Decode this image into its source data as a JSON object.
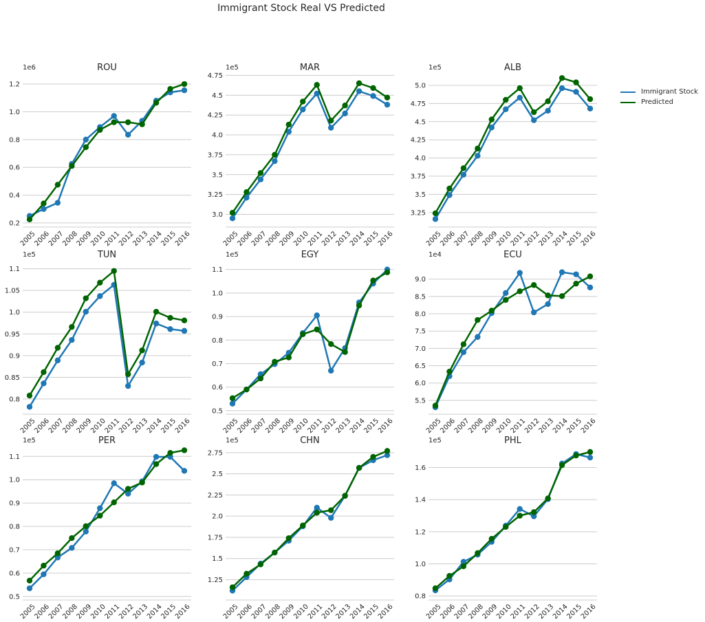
{
  "title": "Immigrant Stock Real VS Predicted",
  "legend": {
    "placement": "right",
    "entries": [
      {
        "label": "Immigrant Stock",
        "color": "#1f77b4"
      },
      {
        "label": "Predicted",
        "color": "#006400"
      }
    ]
  },
  "chart_data": [
    {
      "type": "line",
      "title": "ROU",
      "offset_label": "1e6",
      "categories": [
        "2005",
        "2006",
        "2007",
        "2008",
        "2009",
        "2010",
        "2011",
        "2012",
        "2013",
        "2014",
        "2015",
        "2016"
      ],
      "yticks": [
        0.2,
        0.4,
        0.6,
        0.8,
        1.0,
        1.2
      ],
      "ylim": [
        0.17,
        1.28
      ],
      "grid": "y",
      "series": [
        {
          "name": "Immigrant Stock",
          "values": [
            0.25,
            0.3,
            0.345,
            0.625,
            0.8,
            0.89,
            0.97,
            0.835,
            0.935,
            1.08,
            1.14,
            1.155
          ]
        },
        {
          "name": "Predicted",
          "values": [
            0.225,
            0.34,
            0.475,
            0.61,
            0.745,
            0.87,
            0.925,
            0.925,
            0.91,
            1.065,
            1.165,
            1.2
          ]
        }
      ]
    },
    {
      "type": "line",
      "title": "MAR",
      "offset_label": "1e5",
      "categories": [
        "2005",
        "2006",
        "2007",
        "2008",
        "2009",
        "2010",
        "2011",
        "2012",
        "2013",
        "2014",
        "2015",
        "2016"
      ],
      "yticks": [
        3.0,
        3.25,
        3.5,
        3.75,
        4.0,
        4.25,
        4.5,
        4.75
      ],
      "ylim": [
        2.84,
        4.78
      ],
      "grid": "y",
      "series": [
        {
          "name": "Immigrant Stock",
          "values": [
            2.95,
            3.21,
            3.44,
            3.67,
            4.04,
            4.32,
            4.52,
            4.09,
            4.27,
            4.55,
            4.49,
            4.38
          ]
        },
        {
          "name": "Predicted",
          "values": [
            3.02,
            3.28,
            3.52,
            3.75,
            4.13,
            4.42,
            4.63,
            4.18,
            4.37,
            4.65,
            4.59,
            4.47
          ]
        }
      ]
    },
    {
      "type": "line",
      "title": "ALB",
      "offset_label": "1e5",
      "categories": [
        "2005",
        "2006",
        "2007",
        "2008",
        "2009",
        "2010",
        "2011",
        "2012",
        "2013",
        "2014",
        "2015",
        "2016"
      ],
      "yticks": [
        3.25,
        3.5,
        3.75,
        4.0,
        4.25,
        4.5,
        4.75,
        5.0
      ],
      "ylim": [
        3.05,
        5.17
      ],
      "grid": "y",
      "series": [
        {
          "name": "Immigrant Stock",
          "values": [
            3.16,
            3.49,
            3.77,
            4.03,
            4.42,
            4.67,
            4.83,
            4.52,
            4.65,
            4.96,
            4.91,
            4.68
          ]
        },
        {
          "name": "Predicted",
          "values": [
            3.24,
            3.58,
            3.86,
            4.13,
            4.53,
            4.8,
            4.96,
            4.63,
            4.78,
            5.1,
            5.04,
            4.81
          ]
        }
      ]
    },
    {
      "type": "line",
      "title": "TUN",
      "offset_label": "1e5",
      "categories": [
        "2005",
        "2006",
        "2007",
        "2008",
        "2009",
        "2010",
        "2011",
        "2012",
        "2013",
        "2014",
        "2015",
        "2016"
      ],
      "yticks": [
        0.8,
        0.85,
        0.9,
        0.95,
        1.0,
        1.05,
        1.1
      ],
      "ylim": [
        0.765,
        1.12
      ],
      "grid": "y",
      "series": [
        {
          "name": "Immigrant Stock",
          "values": [
            0.782,
            0.836,
            0.889,
            0.936,
            1.001,
            1.037,
            1.063,
            0.83,
            0.884,
            0.974,
            0.961,
            0.957
          ]
        },
        {
          "name": "Predicted",
          "values": [
            0.808,
            0.862,
            0.918,
            0.966,
            1.032,
            1.068,
            1.095,
            0.857,
            0.912,
            1.001,
            0.987,
            0.981
          ]
        }
      ]
    },
    {
      "type": "line",
      "title": "EGY",
      "offset_label": "1e5",
      "categories": [
        "2005",
        "2006",
        "2007",
        "2008",
        "2009",
        "2010",
        "2011",
        "2012",
        "2013",
        "2014",
        "2015",
        "2016"
      ],
      "yticks": [
        0.5,
        0.6,
        0.7,
        0.8,
        0.9,
        1.0,
        1.1
      ],
      "ylim": [
        0.485,
        1.14
      ],
      "grid": "y",
      "series": [
        {
          "name": "Immigrant Stock",
          "values": [
            0.53,
            0.59,
            0.655,
            0.698,
            0.746,
            0.83,
            0.905,
            0.67,
            0.766,
            0.96,
            1.04,
            1.1
          ]
        },
        {
          "name": "Predicted",
          "values": [
            0.553,
            0.59,
            0.637,
            0.708,
            0.726,
            0.825,
            0.845,
            0.783,
            0.749,
            0.947,
            1.053,
            1.088
          ]
        }
      ]
    },
    {
      "type": "line",
      "title": "ECU",
      "offset_label": "1e4",
      "categories": [
        "2005",
        "2006",
        "2007",
        "2008",
        "2009",
        "2010",
        "2011",
        "2012",
        "2013",
        "2014",
        "2015",
        "2016"
      ],
      "yticks": [
        5.5,
        6.0,
        6.5,
        7.0,
        7.5,
        8.0,
        8.5,
        9.0
      ],
      "ylim": [
        5.1,
        9.55
      ],
      "grid": "y",
      "series": [
        {
          "name": "Immigrant Stock",
          "values": [
            5.3,
            6.2,
            6.89,
            7.33,
            8.02,
            8.6,
            9.18,
            8.04,
            8.28,
            9.2,
            9.14,
            8.76
          ]
        },
        {
          "name": "Predicted",
          "values": [
            5.35,
            6.33,
            7.12,
            7.82,
            8.09,
            8.4,
            8.65,
            8.83,
            8.53,
            8.51,
            8.87,
            9.08
          ]
        }
      ]
    },
    {
      "type": "line",
      "title": "PER",
      "offset_label": "1e5",
      "categories": [
        "2005",
        "2006",
        "2007",
        "2008",
        "2009",
        "2010",
        "2011",
        "2012",
        "2013",
        "2014",
        "2015",
        "2016"
      ],
      "yticks": [
        0.5,
        0.6,
        0.7,
        0.8,
        0.9,
        1.0,
        1.1
      ],
      "ylim": [
        0.485,
        1.145
      ],
      "grid": "y",
      "series": [
        {
          "name": "Immigrant Stock",
          "values": [
            0.535,
            0.595,
            0.667,
            0.708,
            0.778,
            0.878,
            0.985,
            0.94,
            0.993,
            1.098,
            1.098,
            1.038
          ]
        },
        {
          "name": "Predicted",
          "values": [
            0.568,
            0.632,
            0.685,
            0.75,
            0.801,
            0.846,
            0.903,
            0.961,
            0.988,
            1.067,
            1.115,
            1.126
          ]
        }
      ]
    },
    {
      "type": "line",
      "title": "CHN",
      "offset_label": "1e5",
      "categories": [
        "2005",
        "2006",
        "2007",
        "2008",
        "2009",
        "2010",
        "2011",
        "2012",
        "2013",
        "2014",
        "2015",
        "2016"
      ],
      "yticks": [
        1.25,
        1.5,
        1.75,
        2.0,
        2.25,
        2.5,
        2.75
      ],
      "ylim": [
        1.01,
        2.83
      ],
      "grid": "y",
      "series": [
        {
          "name": "Immigrant Stock",
          "values": [
            1.12,
            1.28,
            1.44,
            1.57,
            1.71,
            1.88,
            2.1,
            1.98,
            2.24,
            2.57,
            2.66,
            2.72
          ]
        },
        {
          "name": "Predicted",
          "values": [
            1.16,
            1.32,
            1.43,
            1.57,
            1.74,
            1.89,
            2.04,
            2.07,
            2.24,
            2.57,
            2.7,
            2.77
          ]
        }
      ]
    },
    {
      "type": "line",
      "title": "PHL",
      "offset_label": "1e5",
      "categories": [
        "2005",
        "2006",
        "2007",
        "2008",
        "2009",
        "2010",
        "2011",
        "2012",
        "2013",
        "2014",
        "2015",
        "2016"
      ],
      "yticks": [
        0.8,
        1.0,
        1.2,
        1.4,
        1.6
      ],
      "ylim": [
        0.775,
        1.735
      ],
      "grid": "y",
      "series": [
        {
          "name": "Immigrant Stock",
          "values": [
            0.835,
            0.903,
            1.013,
            1.057,
            1.137,
            1.238,
            1.342,
            1.296,
            1.403,
            1.625,
            1.684,
            1.662
          ]
        },
        {
          "name": "Predicted",
          "values": [
            0.848,
            0.925,
            0.985,
            1.067,
            1.156,
            1.23,
            1.3,
            1.322,
            1.408,
            1.615,
            1.675,
            1.697
          ]
        }
      ]
    }
  ]
}
